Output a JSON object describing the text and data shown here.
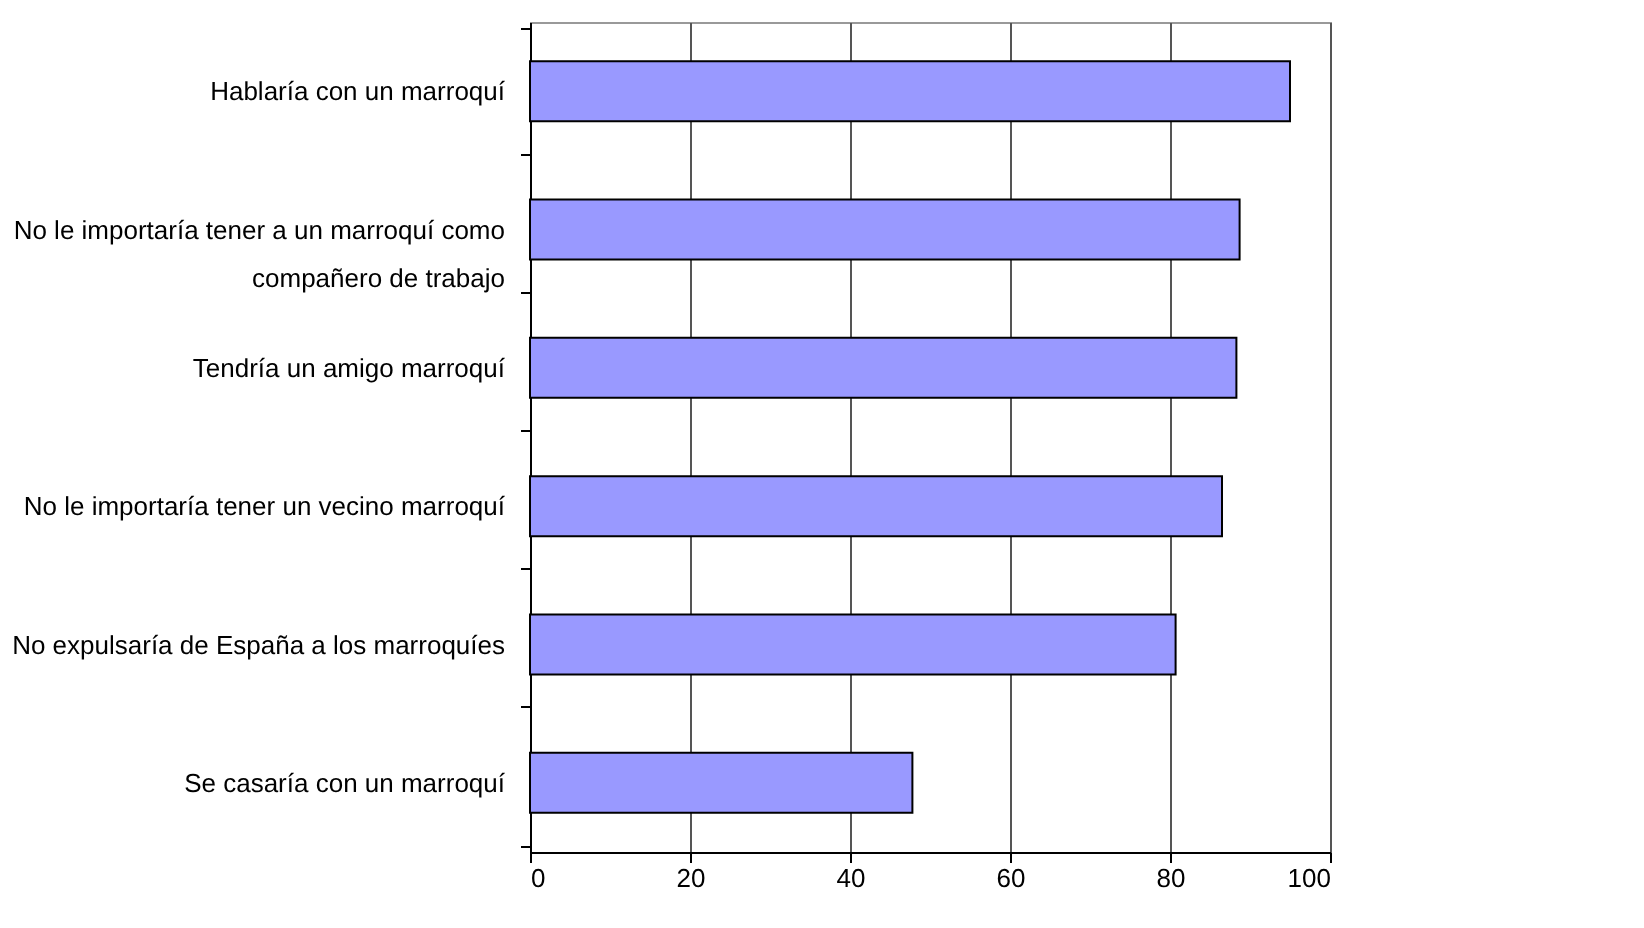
{
  "chart_data": {
    "type": "bar",
    "orientation": "horizontal",
    "categories": [
      "Hablaría con un marroquí",
      "No le importaría tener a un marroquí como compañero de trabajo",
      "Tendría un amigo marroquí",
      "No le importaría tener un vecino marroquí",
      "No expulsaría de España a los marroquíes",
      "Se casaría con un marroquí"
    ],
    "values": [
      95.0,
      88.7,
      88.3,
      86.5,
      80.7,
      47.8
    ],
    "color": "#9999ff",
    "xlim": [
      0,
      100
    ],
    "xticks": [
      0,
      20,
      40,
      60,
      80,
      100
    ],
    "grid": "x"
  }
}
